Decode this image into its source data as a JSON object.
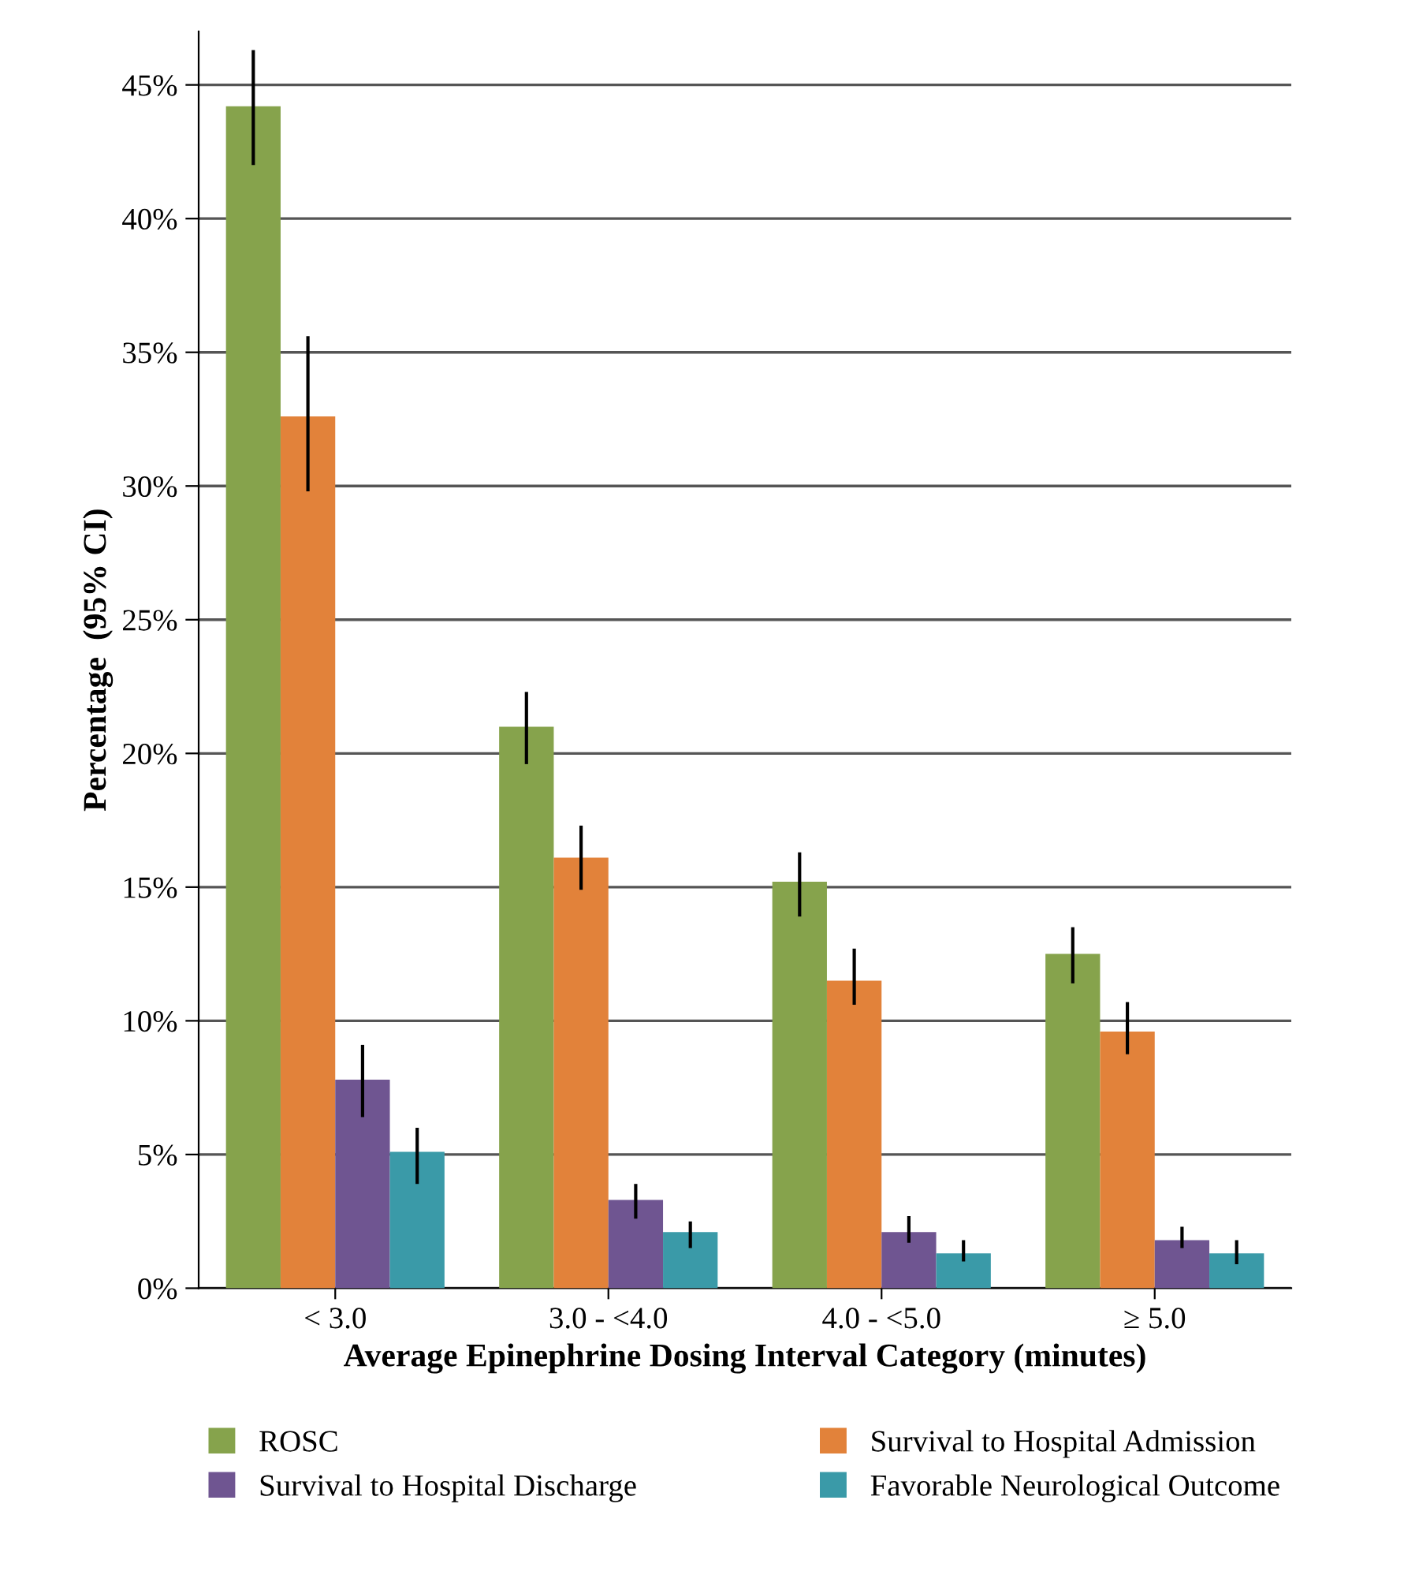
{
  "chart_data": {
    "type": "bar",
    "xlabel": "Average Epinephrine Dosing Interval Category (minutes)",
    "ylabel": "Percentage  (95% CI)",
    "categories": [
      "< 3.0",
      "3.0 - <4.0",
      "4.0 - <5.0",
      "≥ 5.0"
    ],
    "series": [
      {
        "name": "ROSC",
        "color": "#86a34c",
        "values": [
          44.2,
          21.0,
          15.2,
          12.5
        ],
        "errors": [
          [
            42.0,
            46.3
          ],
          [
            19.6,
            22.3
          ],
          [
            13.9,
            16.3
          ],
          [
            11.4,
            13.5
          ]
        ]
      },
      {
        "name": "Survival to Hospital Admission",
        "color": "#e2823a",
        "values": [
          32.6,
          16.1,
          11.5,
          9.6
        ],
        "errors": [
          [
            29.8,
            35.6
          ],
          [
            14.9,
            17.3
          ],
          [
            10.6,
            12.7
          ],
          [
            8.75,
            10.7
          ]
        ]
      },
      {
        "name": "Survival to Hospital Discharge",
        "color": "#6f5591",
        "values": [
          7.8,
          3.3,
          2.1,
          1.8
        ],
        "errors": [
          [
            6.4,
            9.1
          ],
          [
            2.6,
            3.9
          ],
          [
            1.7,
            2.7
          ],
          [
            1.5,
            2.3
          ]
        ]
      },
      {
        "name": "Favorable Neurological Outcome",
        "color": "#3a9aa8",
        "values": [
          5.1,
          2.1,
          1.3,
          1.3
        ],
        "errors": [
          [
            3.9,
            6.0
          ],
          [
            1.5,
            2.5
          ],
          [
            1.0,
            1.8
          ],
          [
            0.9,
            1.8
          ]
        ]
      }
    ],
    "ylim": [
      0,
      47
    ],
    "yticks": [
      {
        "value": 0,
        "label": "0%"
      },
      {
        "value": 5,
        "label": "5%"
      },
      {
        "value": 10,
        "label": "10%"
      },
      {
        "value": 15,
        "label": "15%"
      },
      {
        "value": 20,
        "label": "20%"
      },
      {
        "value": 25,
        "label": "25%"
      },
      {
        "value": 30,
        "label": "30%"
      },
      {
        "value": 35,
        "label": "35%"
      },
      {
        "value": 40,
        "label": "40%"
      },
      {
        "value": 45,
        "label": "45%"
      }
    ],
    "grid": "y",
    "legend": "bottom"
  }
}
